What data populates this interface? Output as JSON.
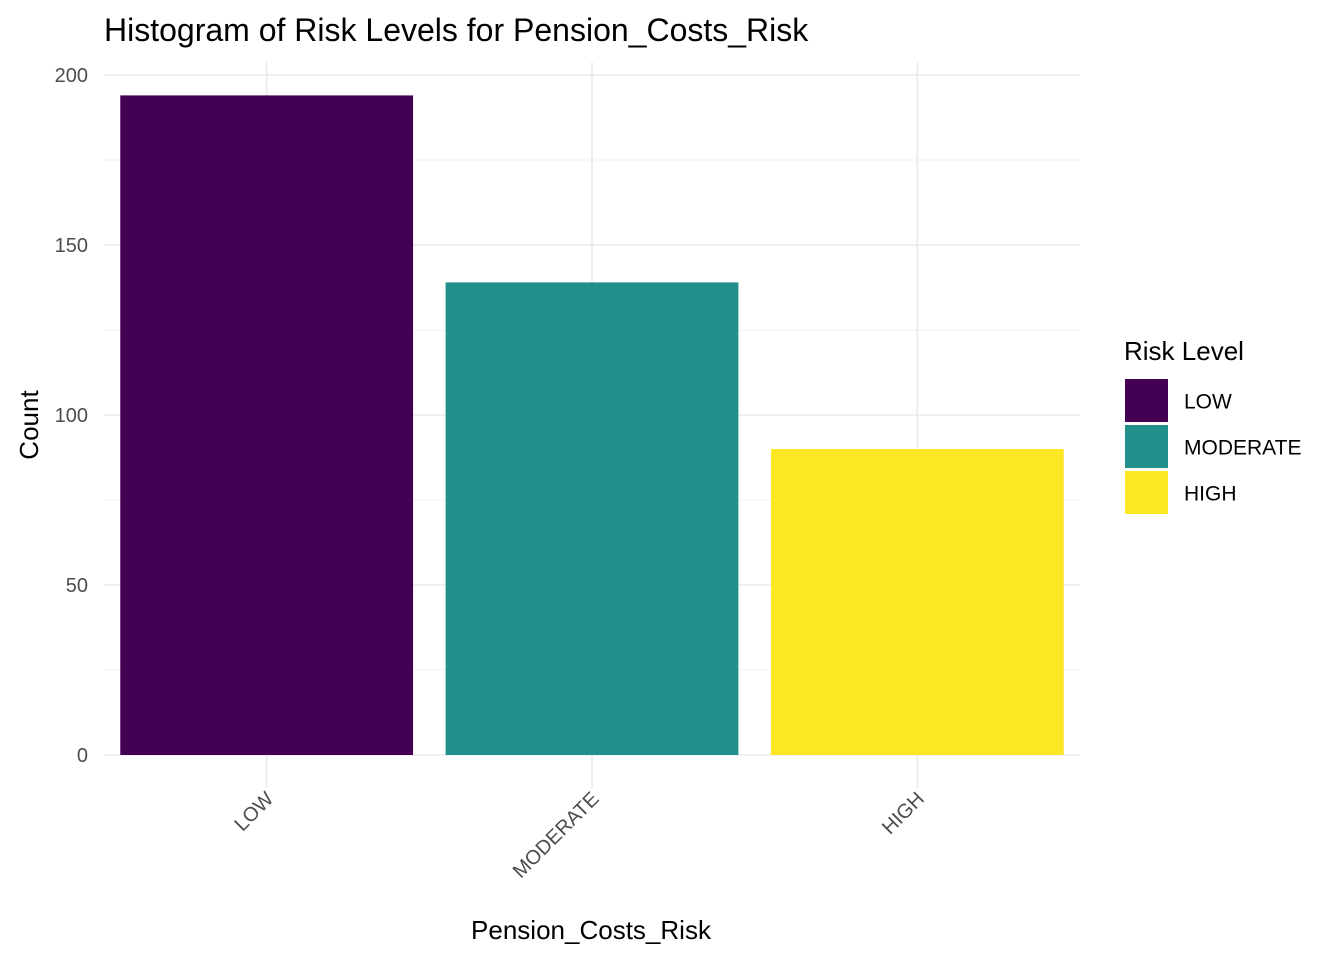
{
  "chart_data": {
    "type": "bar",
    "title": "Histogram of Risk Levels for Pension_Costs_Risk",
    "xlabel": "Pension_Costs_Risk",
    "ylabel": "Count",
    "categories": [
      "LOW",
      "MODERATE",
      "HIGH"
    ],
    "values": [
      194,
      139,
      90
    ],
    "colors": [
      "#440154",
      "#21908C",
      "#FDE725"
    ],
    "ylim": [
      0,
      200
    ],
    "yticks": [
      0,
      50,
      100,
      150,
      200
    ],
    "grid": true,
    "legend": {
      "title": "Risk Level",
      "placement": "right",
      "entries": [
        "LOW",
        "MODERATE",
        "HIGH"
      ]
    }
  }
}
